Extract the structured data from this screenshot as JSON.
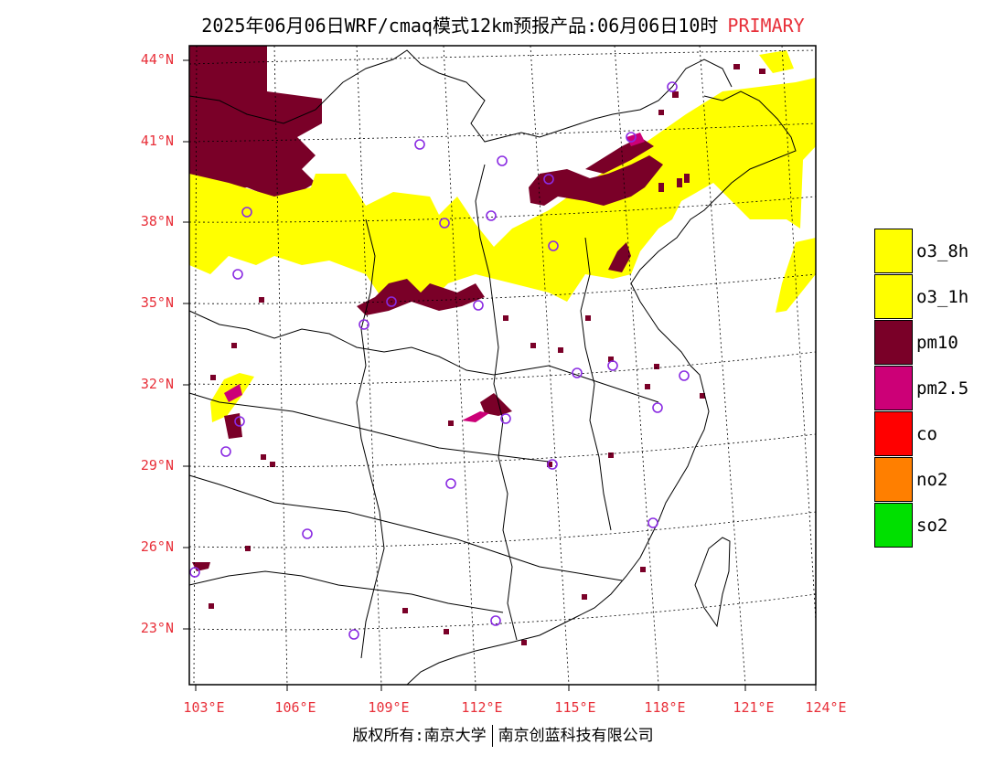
{
  "header": {
    "title": "2025年06月06日WRF/cmaq模式12km预报产品:06月06日10时",
    "tag": "PRIMARY"
  },
  "axes": {
    "lat_labels": [
      "44°N",
      "41°N",
      "38°N",
      "35°N",
      "32°N",
      "29°N",
      "26°N",
      "23°N"
    ],
    "lon_labels": [
      "103°E",
      "106°E",
      "109°E",
      "112°E",
      "115°E",
      "118°E",
      "121°E",
      "124°E"
    ]
  },
  "legend": {
    "items": [
      {
        "label": "o3_8h",
        "color": "#ffff00"
      },
      {
        "label": "o3_1h",
        "color": "#ffff00"
      },
      {
        "label": "pm10",
        "color": "#7a0028"
      },
      {
        "label": "pm2.5",
        "color": "#cc0077"
      },
      {
        "label": "co",
        "color": "#ff0000"
      },
      {
        "label": "no2",
        "color": "#ff7f00"
      },
      {
        "label": "so2",
        "color": "#00e000"
      }
    ]
  },
  "colors": {
    "o3": "#ffff00",
    "pm10": "#7a0028",
    "pm25": "#cc0077",
    "station": "#8a2be2",
    "axis_label": "#e8303a"
  },
  "footer": {
    "left": "版权所有:南京大学",
    "right": "南京创蓝科技有限公司"
  }
}
